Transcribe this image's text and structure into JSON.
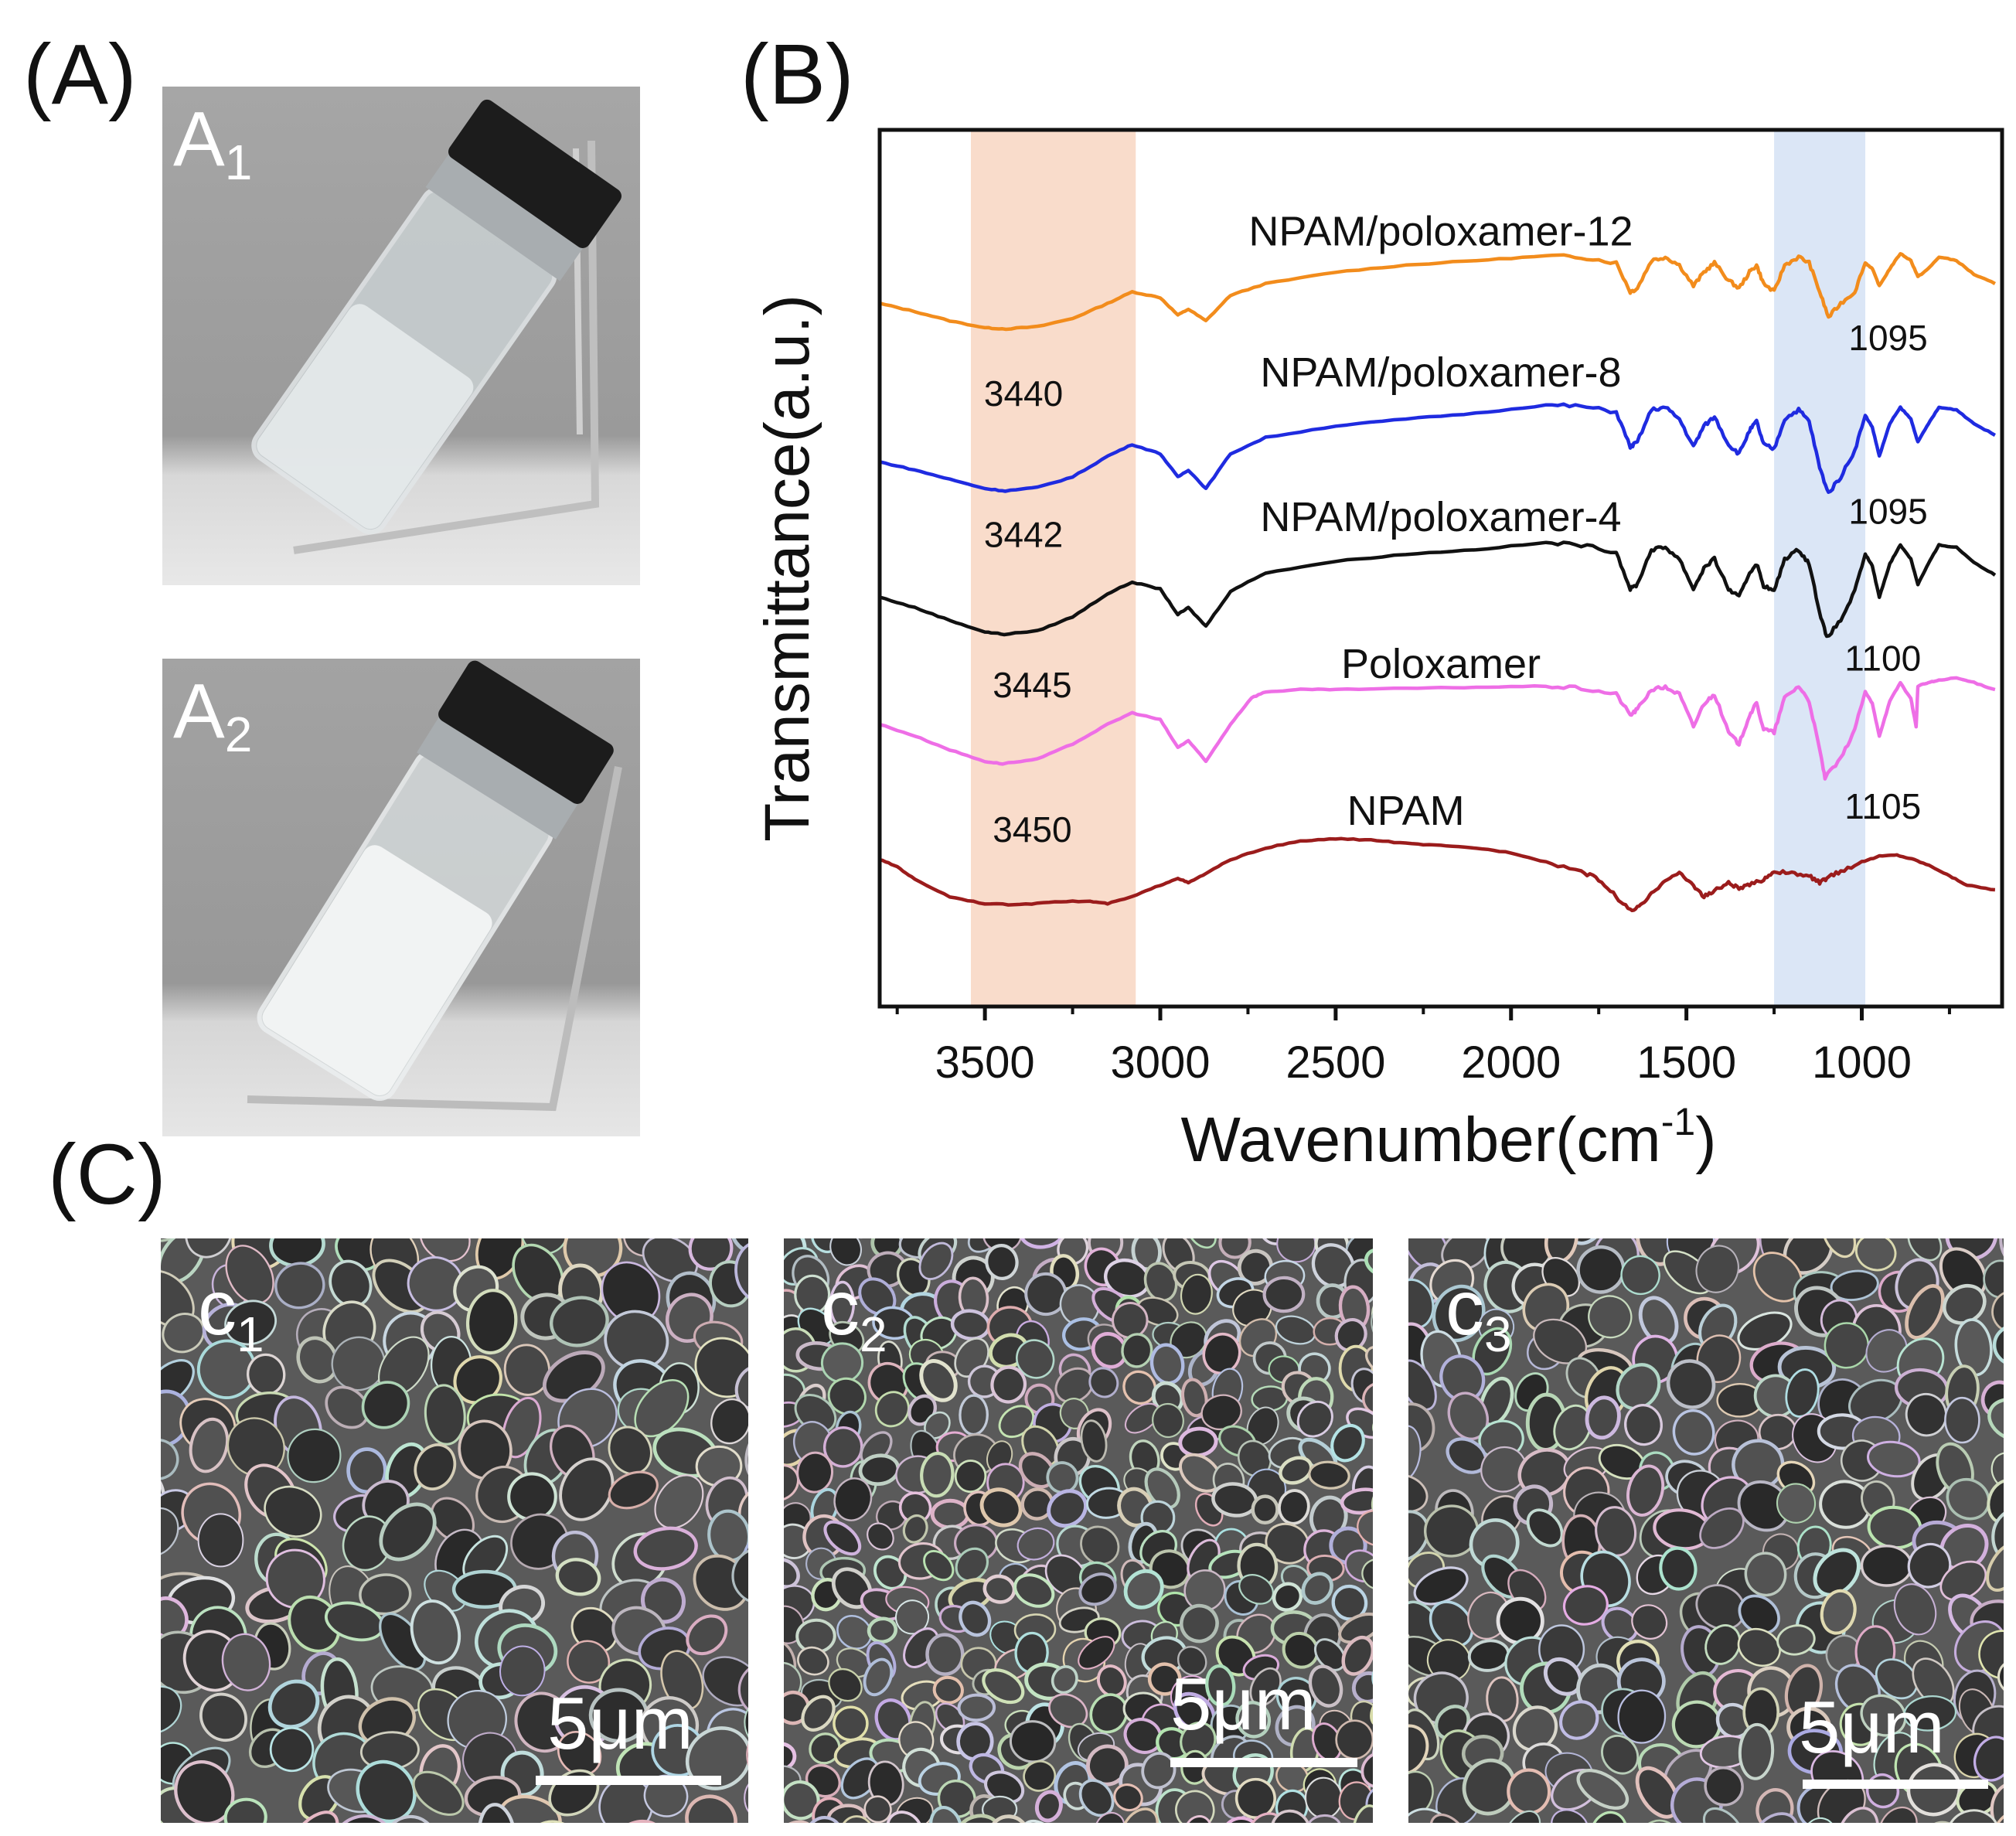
{
  "panels": {
    "a": {
      "label": "(A)",
      "photos": [
        {
          "letter": "A",
          "sub": "1"
        },
        {
          "letter": "A",
          "sub": "2"
        }
      ]
    },
    "b": {
      "label": "(B)"
    },
    "c": {
      "label": "(C)",
      "images": [
        {
          "letter": "c",
          "sub": "1",
          "scale": "5μm"
        },
        {
          "letter": "c",
          "sub": "2",
          "scale": "5μm"
        },
        {
          "letter": "c",
          "sub": "3",
          "scale": "5μm"
        }
      ]
    }
  },
  "chart_data": {
    "type": "line",
    "title": "",
    "xlabel": "Wavenumber(cm",
    "xlabel_sup": "-1",
    "xlabel_close": ")",
    "ylabel": "Transmittance(a.u.)",
    "xlim": [
      3800,
      600
    ],
    "x_reversed": true,
    "xticks": [
      3500,
      3000,
      2500,
      2000,
      1500,
      1000
    ],
    "yticks": [],
    "grid": false,
    "shaded_bands": [
      {
        "from": 3540,
        "to": 3070,
        "color": "#f9dccb"
      },
      {
        "from": 1250,
        "to": 990,
        "color": "#dbe6f6"
      }
    ],
    "series": [
      {
        "name": "NPAM/poloxamer-12",
        "color": "#f28c1c",
        "offset": 4.0,
        "points": [
          [
            3800,
            0.45
          ],
          [
            3700,
            0.38
          ],
          [
            3600,
            0.3
          ],
          [
            3500,
            0.24
          ],
          [
            3440,
            0.23
          ],
          [
            3350,
            0.25
          ],
          [
            3250,
            0.32
          ],
          [
            3150,
            0.45
          ],
          [
            3080,
            0.55
          ],
          [
            3000,
            0.5
          ],
          [
            2950,
            0.35
          ],
          [
            2920,
            0.4
          ],
          [
            2870,
            0.3
          ],
          [
            2800,
            0.52
          ],
          [
            2700,
            0.62
          ],
          [
            2500,
            0.72
          ],
          [
            2300,
            0.78
          ],
          [
            2100,
            0.82
          ],
          [
            1900,
            0.86
          ],
          [
            1800,
            0.85
          ],
          [
            1700,
            0.8
          ],
          [
            1660,
            0.55
          ],
          [
            1640,
            0.58
          ],
          [
            1600,
            0.82
          ],
          [
            1560,
            0.85
          ],
          [
            1520,
            0.78
          ],
          [
            1480,
            0.6
          ],
          [
            1450,
            0.72
          ],
          [
            1420,
            0.8
          ],
          [
            1380,
            0.65
          ],
          [
            1350,
            0.58
          ],
          [
            1320,
            0.72
          ],
          [
            1300,
            0.78
          ],
          [
            1280,
            0.62
          ],
          [
            1250,
            0.55
          ],
          [
            1220,
            0.78
          ],
          [
            1180,
            0.85
          ],
          [
            1150,
            0.8
          ],
          [
            1120,
            0.55
          ],
          [
            1095,
            0.33
          ],
          [
            1060,
            0.45
          ],
          [
            1020,
            0.55
          ],
          [
            990,
            0.8
          ],
          [
            970,
            0.75
          ],
          [
            950,
            0.6
          ],
          [
            920,
            0.75
          ],
          [
            890,
            0.88
          ],
          [
            860,
            0.82
          ],
          [
            840,
            0.68
          ],
          [
            810,
            0.75
          ],
          [
            780,
            0.85
          ],
          [
            730,
            0.82
          ],
          [
            680,
            0.7
          ],
          [
            620,
            0.62
          ]
        ]
      },
      {
        "name": "NPAM/poloxamer-8",
        "color": "#1f2be0",
        "offset": 3.0,
        "points": [
          [
            3800,
            0.35
          ],
          [
            3700,
            0.28
          ],
          [
            3600,
            0.2
          ],
          [
            3500,
            0.12
          ],
          [
            3442,
            0.1
          ],
          [
            3350,
            0.13
          ],
          [
            3250,
            0.22
          ],
          [
            3150,
            0.4
          ],
          [
            3080,
            0.5
          ],
          [
            3000,
            0.42
          ],
          [
            2950,
            0.22
          ],
          [
            2920,
            0.28
          ],
          [
            2870,
            0.12
          ],
          [
            2800,
            0.42
          ],
          [
            2700,
            0.56
          ],
          [
            2500,
            0.66
          ],
          [
            2300,
            0.72
          ],
          [
            2100,
            0.77
          ],
          [
            1900,
            0.84
          ],
          [
            1800,
            0.83
          ],
          [
            1700,
            0.78
          ],
          [
            1660,
            0.48
          ],
          [
            1640,
            0.52
          ],
          [
            1600,
            0.8
          ],
          [
            1560,
            0.82
          ],
          [
            1520,
            0.72
          ],
          [
            1480,
            0.48
          ],
          [
            1450,
            0.66
          ],
          [
            1420,
            0.74
          ],
          [
            1380,
            0.5
          ],
          [
            1350,
            0.42
          ],
          [
            1320,
            0.62
          ],
          [
            1300,
            0.7
          ],
          [
            1280,
            0.5
          ],
          [
            1250,
            0.46
          ],
          [
            1220,
            0.72
          ],
          [
            1180,
            0.8
          ],
          [
            1150,
            0.7
          ],
          [
            1120,
            0.3
          ],
          [
            1095,
            0.08
          ],
          [
            1060,
            0.22
          ],
          [
            1020,
            0.45
          ],
          [
            990,
            0.75
          ],
          [
            970,
            0.65
          ],
          [
            950,
            0.4
          ],
          [
            920,
            0.68
          ],
          [
            890,
            0.82
          ],
          [
            860,
            0.72
          ],
          [
            840,
            0.52
          ],
          [
            810,
            0.68
          ],
          [
            780,
            0.82
          ],
          [
            730,
            0.8
          ],
          [
            680,
            0.68
          ],
          [
            620,
            0.58
          ]
        ]
      },
      {
        "name": "NPAM/poloxamer-4",
        "color": "#111111",
        "offset": 2.0,
        "points": [
          [
            3800,
            0.45
          ],
          [
            3700,
            0.36
          ],
          [
            3600,
            0.25
          ],
          [
            3500,
            0.15
          ],
          [
            3445,
            0.13
          ],
          [
            3350,
            0.16
          ],
          [
            3250,
            0.28
          ],
          [
            3150,
            0.48
          ],
          [
            3080,
            0.58
          ],
          [
            3000,
            0.52
          ],
          [
            2950,
            0.3
          ],
          [
            2920,
            0.36
          ],
          [
            2870,
            0.2
          ],
          [
            2800,
            0.5
          ],
          [
            2700,
            0.66
          ],
          [
            2500,
            0.76
          ],
          [
            2300,
            0.82
          ],
          [
            2100,
            0.86
          ],
          [
            1900,
            0.92
          ],
          [
            1800,
            0.9
          ],
          [
            1700,
            0.84
          ],
          [
            1660,
            0.52
          ],
          [
            1640,
            0.56
          ],
          [
            1600,
            0.86
          ],
          [
            1560,
            0.88
          ],
          [
            1520,
            0.78
          ],
          [
            1480,
            0.52
          ],
          [
            1450,
            0.7
          ],
          [
            1420,
            0.78
          ],
          [
            1380,
            0.52
          ],
          [
            1350,
            0.45
          ],
          [
            1320,
            0.66
          ],
          [
            1300,
            0.74
          ],
          [
            1280,
            0.55
          ],
          [
            1250,
            0.5
          ],
          [
            1220,
            0.78
          ],
          [
            1180,
            0.86
          ],
          [
            1150,
            0.74
          ],
          [
            1120,
            0.32
          ],
          [
            1100,
            0.1
          ],
          [
            1060,
            0.25
          ],
          [
            1020,
            0.5
          ],
          [
            990,
            0.82
          ],
          [
            970,
            0.72
          ],
          [
            950,
            0.45
          ],
          [
            920,
            0.74
          ],
          [
            890,
            0.9
          ],
          [
            860,
            0.78
          ],
          [
            840,
            0.56
          ],
          [
            810,
            0.74
          ],
          [
            780,
            0.9
          ],
          [
            730,
            0.88
          ],
          [
            680,
            0.75
          ],
          [
            620,
            0.64
          ]
        ]
      },
      {
        "name": "Poloxamer",
        "color": "#ee6ee6",
        "offset": 1.0,
        "points": [
          [
            3800,
            0.62
          ],
          [
            3700,
            0.52
          ],
          [
            3600,
            0.4
          ],
          [
            3500,
            0.3
          ],
          [
            3450,
            0.28
          ],
          [
            3350,
            0.32
          ],
          [
            3250,
            0.45
          ],
          [
            3150,
            0.62
          ],
          [
            3080,
            0.72
          ],
          [
            3000,
            0.66
          ],
          [
            2950,
            0.42
          ],
          [
            2920,
            0.48
          ],
          [
            2870,
            0.3
          ],
          [
            2800,
            0.62
          ],
          [
            2740,
            0.85
          ],
          [
            2700,
            0.9
          ],
          [
            2600,
            0.92
          ],
          [
            2500,
            0.92
          ],
          [
            2300,
            0.93
          ],
          [
            2100,
            0.94
          ],
          [
            1900,
            0.95
          ],
          [
            1800,
            0.93
          ],
          [
            1700,
            0.88
          ],
          [
            1660,
            0.7
          ],
          [
            1640,
            0.75
          ],
          [
            1600,
            0.92
          ],
          [
            1560,
            0.94
          ],
          [
            1520,
            0.88
          ],
          [
            1480,
            0.6
          ],
          [
            1450,
            0.8
          ],
          [
            1420,
            0.88
          ],
          [
            1380,
            0.55
          ],
          [
            1350,
            0.45
          ],
          [
            1320,
            0.7
          ],
          [
            1300,
            0.8
          ],
          [
            1280,
            0.58
          ],
          [
            1250,
            0.55
          ],
          [
            1220,
            0.85
          ],
          [
            1180,
            0.95
          ],
          [
            1150,
            0.82
          ],
          [
            1120,
            0.4
          ],
          [
            1105,
            0.16
          ],
          [
            1060,
            0.32
          ],
          [
            1020,
            0.58
          ],
          [
            990,
            0.9
          ],
          [
            970,
            0.8
          ],
          [
            950,
            0.52
          ],
          [
            920,
            0.82
          ],
          [
            890,
            0.98
          ],
          [
            860,
            0.84
          ],
          [
            845,
            0.6
          ],
          [
            840,
            0.95
          ],
          [
            810,
            0.98
          ],
          [
            780,
            1.0
          ],
          [
            730,
            1.02
          ],
          [
            680,
            0.98
          ],
          [
            620,
            0.92
          ]
        ]
      },
      {
        "name": "NPAM",
        "color": "#9b1c1c",
        "offset": 0.0,
        "points": [
          [
            3800,
            0.72
          ],
          [
            3750,
            0.66
          ],
          [
            3700,
            0.55
          ],
          [
            3600,
            0.4
          ],
          [
            3500,
            0.34
          ],
          [
            3400,
            0.33
          ],
          [
            3300,
            0.36
          ],
          [
            3200,
            0.36
          ],
          [
            3150,
            0.34
          ],
          [
            3080,
            0.4
          ],
          [
            3000,
            0.5
          ],
          [
            2950,
            0.56
          ],
          [
            2920,
            0.52
          ],
          [
            2870,
            0.6
          ],
          [
            2800,
            0.72
          ],
          [
            2700,
            0.82
          ],
          [
            2600,
            0.88
          ],
          [
            2500,
            0.9
          ],
          [
            2400,
            0.89
          ],
          [
            2300,
            0.86
          ],
          [
            2200,
            0.84
          ],
          [
            2100,
            0.82
          ],
          [
            2000,
            0.78
          ],
          [
            1900,
            0.7
          ],
          [
            1800,
            0.62
          ],
          [
            1750,
            0.55
          ],
          [
            1700,
            0.4
          ],
          [
            1660,
            0.28
          ],
          [
            1630,
            0.32
          ],
          [
            1600,
            0.42
          ],
          [
            1560,
            0.55
          ],
          [
            1520,
            0.6
          ],
          [
            1480,
            0.5
          ],
          [
            1450,
            0.4
          ],
          [
            1420,
            0.45
          ],
          [
            1380,
            0.52
          ],
          [
            1350,
            0.47
          ],
          [
            1320,
            0.5
          ],
          [
            1280,
            0.55
          ],
          [
            1250,
            0.62
          ],
          [
            1200,
            0.6
          ],
          [
            1150,
            0.58
          ],
          [
            1120,
            0.52
          ],
          [
            1100,
            0.56
          ],
          [
            1060,
            0.62
          ],
          [
            1000,
            0.7
          ],
          [
            950,
            0.75
          ],
          [
            900,
            0.76
          ],
          [
            850,
            0.72
          ],
          [
            800,
            0.66
          ],
          [
            750,
            0.58
          ],
          [
            700,
            0.5
          ],
          [
            620,
            0.46
          ]
        ]
      }
    ],
    "labels": [
      {
        "text": "NPAM/poloxamer-12",
        "x": 2200,
        "series": 0,
        "dy": 0.95
      },
      {
        "text": "NPAM/poloxamer-8",
        "x": 2200,
        "series": 1,
        "dy": 1.0
      },
      {
        "text": "NPAM/poloxamer-4",
        "x": 2200,
        "series": 2,
        "dy": 1.02
      },
      {
        "text": "Poloxamer",
        "x": 2200,
        "series": 3,
        "dy": 1.02
      },
      {
        "text": "NPAM",
        "x": 2300,
        "series": 4,
        "dy": 1.02
      }
    ],
    "annotations": [
      {
        "text": "3440",
        "x": 3390,
        "series": 0,
        "dy": -0.3
      },
      {
        "text": "3442",
        "x": 3390,
        "series": 1,
        "dy": -0.25
      },
      {
        "text": "3445",
        "x": 3365,
        "series": 2,
        "dy": -0.28
      },
      {
        "text": "3450",
        "x": 3365,
        "series": 3,
        "dy": -0.26
      },
      {
        "text": "1095",
        "x": 925,
        "series": 0,
        "dy": 0.18
      },
      {
        "text": "1095",
        "x": 925,
        "series": 1,
        "dy": -0.05
      },
      {
        "text": "1100",
        "x": 940,
        "series": 2,
        "dy": -0.05
      },
      {
        "text": "1105",
        "x": 940,
        "series": 3,
        "dy": -0.06
      }
    ]
  }
}
